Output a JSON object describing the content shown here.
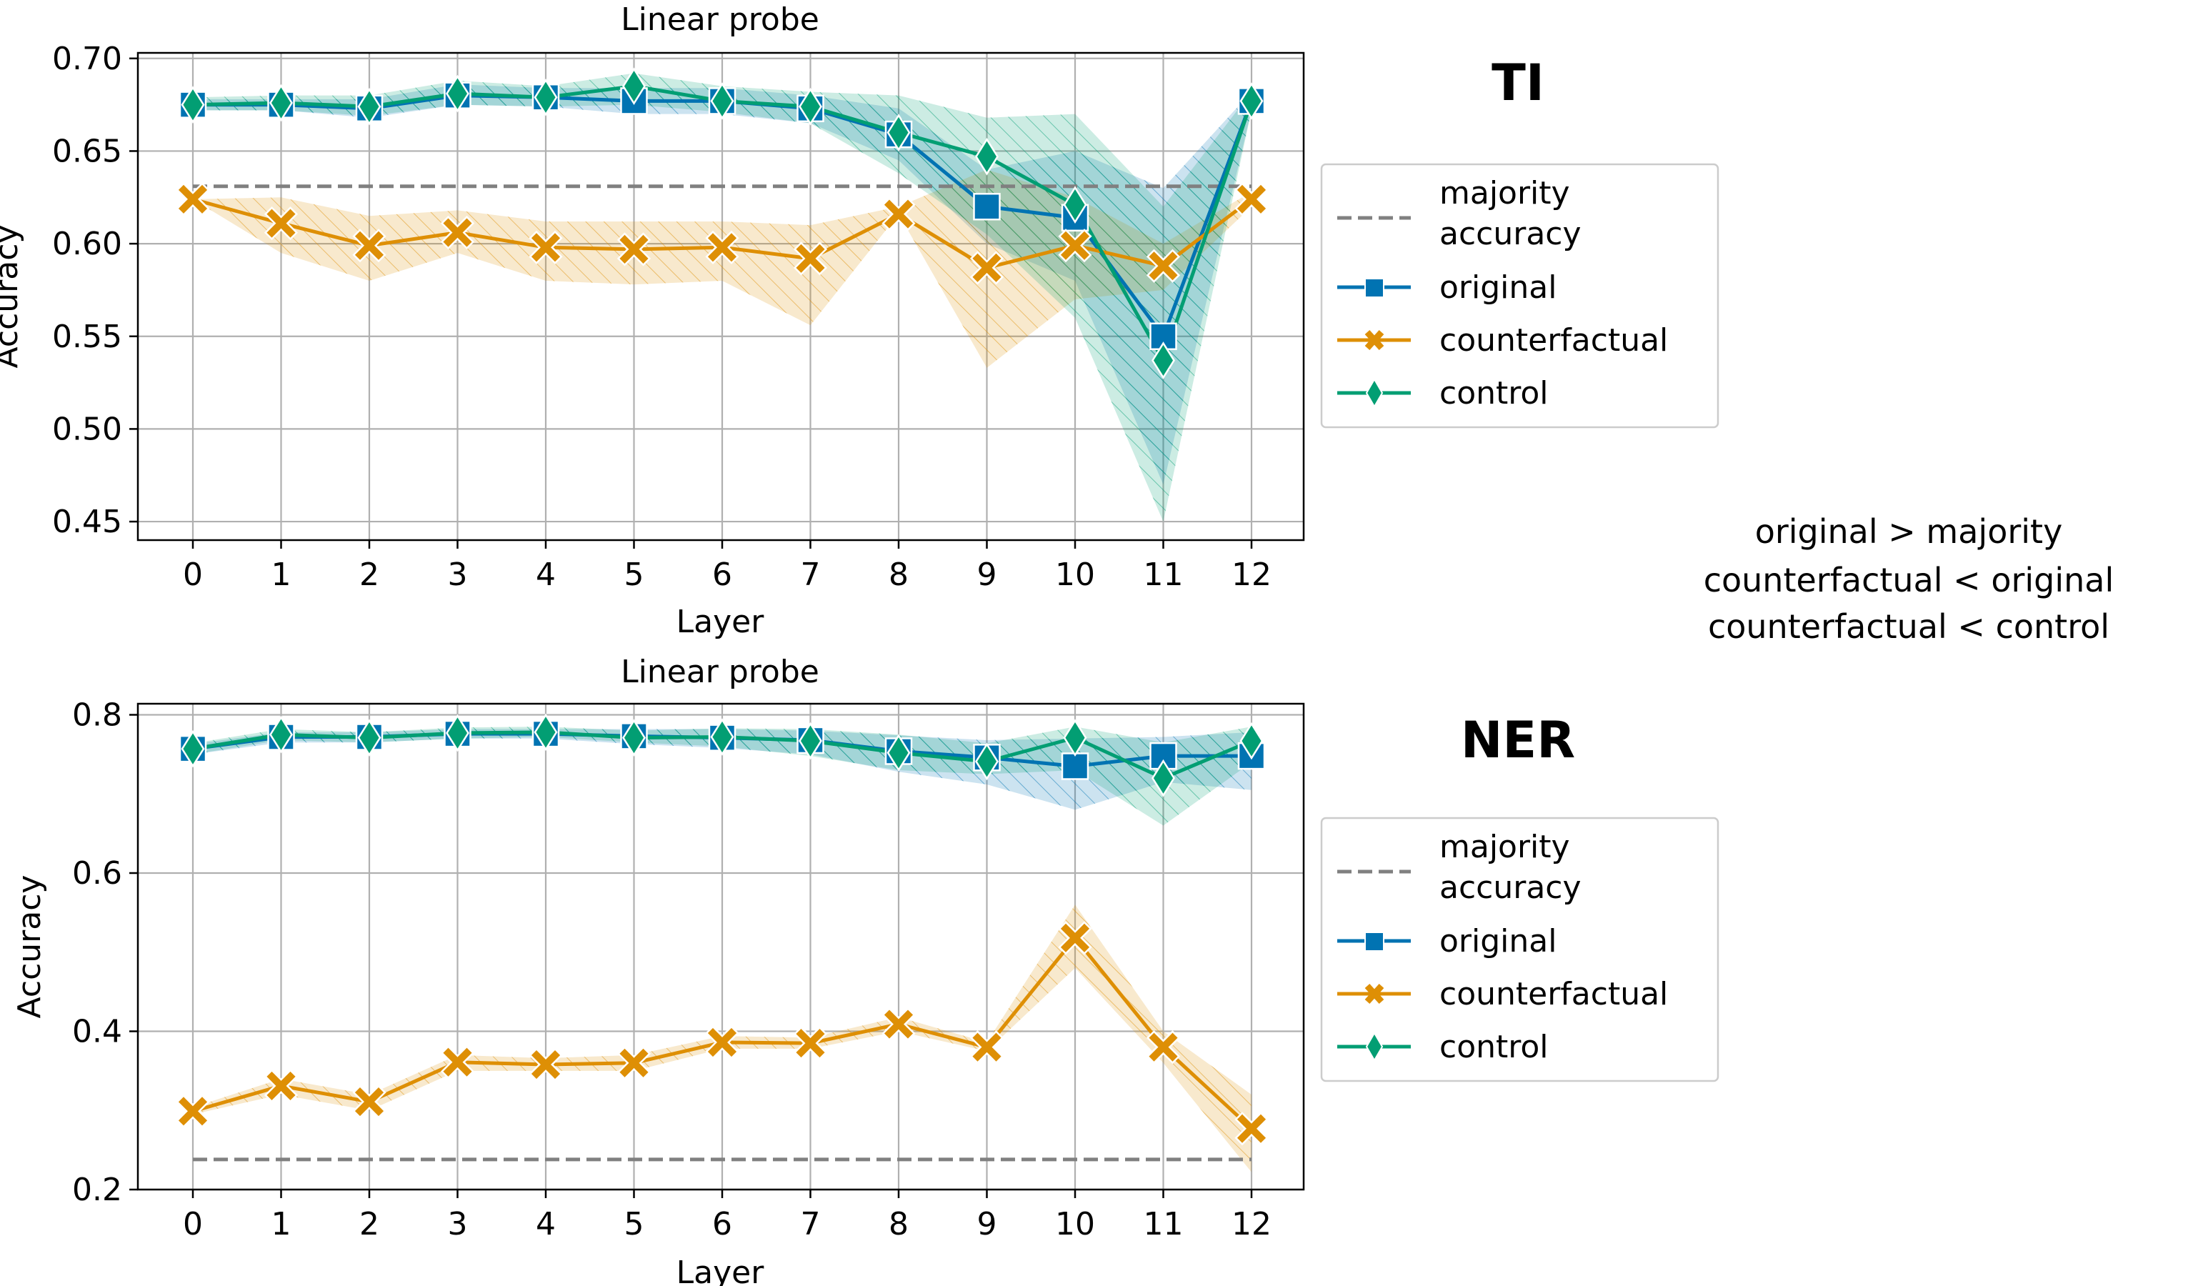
{
  "colors": {
    "original": "#0173b2",
    "counterfactual": "#de8f05",
    "control": "#029e73",
    "majority": "#808080",
    "grid": "#b0b0b0",
    "text": "#000000"
  },
  "series_meta": {
    "majority": {
      "label_line1": "majority",
      "label_line2": "accuracy"
    },
    "original": {
      "label": "original",
      "marker": "square"
    },
    "counterfactual": {
      "label": "counterfactual",
      "marker": "x"
    },
    "control": {
      "label": "control",
      "marker": "diamond"
    }
  },
  "note": {
    "line1": "original > majority",
    "line2": "counterfactual < original",
    "line3": "counterfactual < control"
  },
  "chart_data": [
    {
      "type": "line",
      "panel_title": "TI",
      "title": "Linear probe",
      "xlabel": "Layer",
      "ylabel": "Accuracy",
      "x": [
        0,
        1,
        2,
        3,
        4,
        5,
        6,
        7,
        8,
        9,
        10,
        11,
        12
      ],
      "ylim": [
        0.44,
        0.703
      ],
      "yticks": [
        0.45,
        0.5,
        0.55,
        0.6,
        0.65,
        0.7
      ],
      "ytick_labels": [
        "0.45",
        "0.50",
        "0.55",
        "0.60",
        "0.65",
        "0.70"
      ],
      "grid": true,
      "legend": "right",
      "majority_accuracy": 0.631,
      "series": [
        {
          "name": "original",
          "values": [
            0.675,
            0.675,
            0.673,
            0.68,
            0.679,
            0.677,
            0.677,
            0.673,
            0.659,
            0.62,
            0.614,
            0.55,
            0.677
          ],
          "lower": [
            0.672,
            0.672,
            0.668,
            0.675,
            0.674,
            0.67,
            0.67,
            0.665,
            0.645,
            0.6,
            0.58,
            0.47,
            0.672
          ],
          "upper": [
            0.678,
            0.678,
            0.678,
            0.686,
            0.684,
            0.684,
            0.684,
            0.68,
            0.673,
            0.64,
            0.65,
            0.63,
            0.682
          ]
        },
        {
          "name": "counterfactual",
          "values": [
            0.624,
            0.611,
            0.599,
            0.606,
            0.598,
            0.597,
            0.598,
            0.592,
            0.616,
            0.587,
            0.599,
            0.588,
            0.624
          ],
          "lower": [
            0.624,
            0.595,
            0.58,
            0.595,
            0.58,
            0.578,
            0.58,
            0.556,
            0.616,
            0.533,
            0.57,
            0.575,
            0.62
          ],
          "upper": [
            0.624,
            0.625,
            0.615,
            0.618,
            0.612,
            0.612,
            0.612,
            0.61,
            0.62,
            0.64,
            0.625,
            0.6,
            0.628
          ]
        },
        {
          "name": "control",
          "values": [
            0.675,
            0.676,
            0.674,
            0.681,
            0.679,
            0.685,
            0.677,
            0.674,
            0.66,
            0.647,
            0.621,
            0.537,
            0.677
          ],
          "lower": [
            0.672,
            0.672,
            0.669,
            0.675,
            0.674,
            0.675,
            0.671,
            0.665,
            0.638,
            0.605,
            0.56,
            0.45,
            0.672
          ],
          "upper": [
            0.679,
            0.68,
            0.68,
            0.688,
            0.685,
            0.692,
            0.685,
            0.682,
            0.68,
            0.668,
            0.67,
            0.62,
            0.682
          ]
        }
      ]
    },
    {
      "type": "line",
      "panel_title": "NER",
      "title": "Linear probe",
      "xlabel": "Layer",
      "ylabel": "Accuracy",
      "x": [
        0,
        1,
        2,
        3,
        4,
        5,
        6,
        7,
        8,
        9,
        10,
        11,
        12
      ],
      "ylim": [
        0.2,
        0.814
      ],
      "yticks": [
        0.2,
        0.4,
        0.6,
        0.8
      ],
      "ytick_labels": [
        "0.2",
        "0.4",
        "0.6",
        "0.8"
      ],
      "grid": true,
      "legend": "right",
      "majority_accuracy": 0.238,
      "series": [
        {
          "name": "original",
          "values": [
            0.757,
            0.772,
            0.772,
            0.776,
            0.776,
            0.773,
            0.771,
            0.768,
            0.754,
            0.746,
            0.735,
            0.748,
            0.748
          ],
          "lower": [
            0.75,
            0.765,
            0.765,
            0.77,
            0.77,
            0.763,
            0.758,
            0.75,
            0.728,
            0.712,
            0.68,
            0.715,
            0.705
          ],
          "upper": [
            0.763,
            0.778,
            0.778,
            0.782,
            0.782,
            0.782,
            0.782,
            0.78,
            0.774,
            0.768,
            0.77,
            0.772,
            0.778
          ]
        },
        {
          "name": "counterfactual",
          "values": [
            0.299,
            0.331,
            0.311,
            0.361,
            0.358,
            0.36,
            0.386,
            0.385,
            0.409,
            0.38,
            0.518,
            0.38,
            0.277
          ],
          "lower": [
            0.295,
            0.32,
            0.3,
            0.35,
            0.35,
            0.35,
            0.378,
            0.378,
            0.4,
            0.375,
            0.48,
            0.36,
            0.222
          ],
          "upper": [
            0.304,
            0.34,
            0.32,
            0.37,
            0.366,
            0.37,
            0.394,
            0.392,
            0.418,
            0.386,
            0.56,
            0.4,
            0.32
          ]
        },
        {
          "name": "control",
          "values": [
            0.757,
            0.775,
            0.771,
            0.777,
            0.778,
            0.771,
            0.772,
            0.767,
            0.752,
            0.741,
            0.771,
            0.72,
            0.767
          ],
          "lower": [
            0.75,
            0.768,
            0.765,
            0.77,
            0.772,
            0.765,
            0.76,
            0.748,
            0.73,
            0.725,
            0.73,
            0.66,
            0.74
          ],
          "upper": [
            0.764,
            0.782,
            0.778,
            0.784,
            0.785,
            0.78,
            0.783,
            0.782,
            0.775,
            0.764,
            0.785,
            0.765,
            0.785
          ]
        }
      ]
    }
  ]
}
